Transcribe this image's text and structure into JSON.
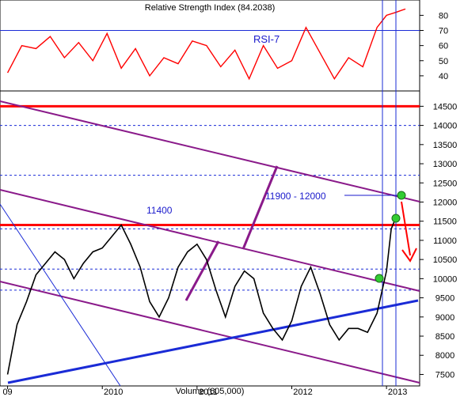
{
  "rsi_title": "Relative Strength Index (84.2038)",
  "volume_label": "Volume (605,000)",
  "colors": {
    "price": "#000000",
    "rsi": "#ff0000",
    "support_trend": "#1a2bd6",
    "channel": "#8a1a8a",
    "resistance": "#ff0000",
    "annotation": "#1a1acc",
    "marker": "#33cc33",
    "arrow": "#ff0000"
  },
  "chart_data": [
    {
      "type": "line",
      "name": "RSI-7",
      "label": "RSI-7",
      "title": "Relative Strength Index (84.2038)",
      "ylim": [
        30,
        87
      ],
      "yticks": [
        40,
        50,
        60,
        70,
        80
      ],
      "reference_lines": [
        30,
        70
      ],
      "x": [
        2009.0,
        2009.15,
        2009.3,
        2009.45,
        2009.6,
        2009.75,
        2009.9,
        2010.05,
        2010.2,
        2010.35,
        2010.5,
        2010.65,
        2010.8,
        2010.95,
        2011.1,
        2011.25,
        2011.4,
        2011.55,
        2011.7,
        2011.85,
        2012.0,
        2012.15,
        2012.3,
        2012.45,
        2012.6,
        2012.75,
        2012.9,
        2013.0,
        2013.1,
        2013.2
      ],
      "values": [
        42,
        60,
        58,
        66,
        52,
        62,
        50,
        68,
        45,
        58,
        40,
        52,
        48,
        63,
        60,
        46,
        57,
        38,
        60,
        45,
        50,
        72,
        55,
        38,
        52,
        46,
        72,
        80,
        82,
        84.2
      ]
    },
    {
      "type": "line",
      "name": "Price",
      "ylim": [
        7200,
        14900
      ],
      "yticks": [
        7500,
        8000,
        8500,
        9000,
        9500,
        10000,
        10500,
        11000,
        11500,
        12000,
        12500,
        13000,
        13500,
        14000,
        14500
      ],
      "xticks": [
        "09",
        "2010",
        "2011",
        "2012",
        "2013"
      ],
      "x": [
        2009.0,
        2009.1,
        2009.2,
        2009.3,
        2009.4,
        2009.5,
        2009.6,
        2009.7,
        2009.8,
        2009.9,
        2010.0,
        2010.1,
        2010.2,
        2010.3,
        2010.4,
        2010.5,
        2010.6,
        2010.7,
        2010.8,
        2010.9,
        2011.0,
        2011.1,
        2011.2,
        2011.3,
        2011.4,
        2011.5,
        2011.6,
        2011.7,
        2011.8,
        2011.9,
        2012.0,
        2012.1,
        2012.2,
        2012.3,
        2012.4,
        2012.5,
        2012.6,
        2012.7,
        2012.8,
        2012.9,
        2013.0,
        2013.05,
        2013.1
      ],
      "values": [
        7500,
        8800,
        9400,
        10100,
        10400,
        10700,
        10500,
        10000,
        10400,
        10700,
        10800,
        11100,
        11400,
        10900,
        10300,
        9400,
        9000,
        9500,
        10300,
        10700,
        10900,
        10500,
        9700,
        9000,
        9800,
        10200,
        10000,
        9100,
        8700,
        8400,
        8900,
        9800,
        10300,
        9600,
        8800,
        8400,
        8700,
        8700,
        8600,
        9100,
        10200,
        11300,
        11600
      ]
    },
    {
      "type": "annotations",
      "horizontal_lines": [
        14500,
        11400
      ],
      "dashed_levels": [
        14000,
        12700,
        11300,
        10250,
        9700
      ],
      "labels": [
        "11400",
        "11900 - 12000"
      ],
      "markers": [
        9900,
        11400,
        12000
      ],
      "arrow_target": 10300
    }
  ]
}
